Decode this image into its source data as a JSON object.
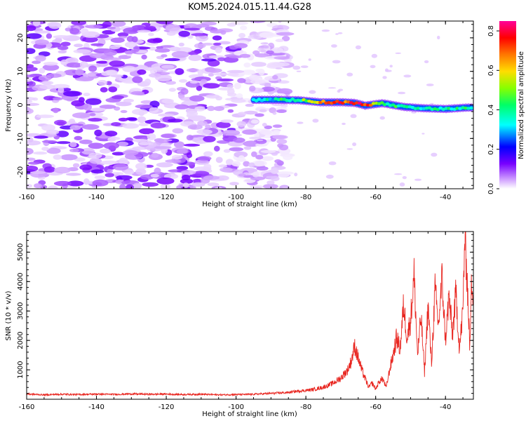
{
  "title": "KOM5.2024.015.11.44.G28",
  "chart_data": [
    {
      "type": "heatmap",
      "xlabel": "Height of straight line (km)",
      "ylabel": "Frequency (Hz)",
      "xlim": [
        -160,
        -32
      ],
      "ylim": [
        -25,
        25
      ],
      "x_ticks": [
        "-160",
        "-140",
        "-120",
        "-100",
        "-80",
        "-60",
        "-40"
      ],
      "y_ticks": [
        "-20",
        "-10",
        "0",
        "10",
        "20"
      ],
      "colorbar": {
        "label": "Normalized spectral amplitude",
        "range": [
          0.0,
          0.85
        ],
        "ticks": [
          "0.0",
          "0.2",
          "0.4",
          "0.6",
          "0.8"
        ],
        "colormap": [
          "#ffffff",
          "#cc99ff",
          "#7700ff",
          "#0000ff",
          "#00ffff",
          "#00ff66",
          "#88ff00",
          "#ffdd00",
          "#ff7700",
          "#ff0000",
          "#ff0099"
        ]
      },
      "background_noise": {
        "x_range": [
          -160,
          -95
        ],
        "amplitude_range": [
          0.02,
          0.15
        ]
      },
      "signal_band": [
        {
          "x": -95,
          "f": 1.5,
          "amp": 0.35
        },
        {
          "x": -88,
          "f": 1.5,
          "amp": 0.4
        },
        {
          "x": -82,
          "f": 1.4,
          "amp": 0.45
        },
        {
          "x": -76,
          "f": 0.8,
          "amp": 0.72
        },
        {
          "x": -70,
          "f": 0.8,
          "amp": 0.8
        },
        {
          "x": -66,
          "f": 0.6,
          "amp": 0.78
        },
        {
          "x": -63,
          "f": -0.2,
          "amp": 0.83
        },
        {
          "x": -58,
          "f": 0.5,
          "amp": 0.4
        },
        {
          "x": -52,
          "f": -0.6,
          "amp": 0.42
        },
        {
          "x": -46,
          "f": -1.0,
          "amp": 0.38
        },
        {
          "x": -40,
          "f": -1.2,
          "amp": 0.42
        },
        {
          "x": -34,
          "f": -0.8,
          "amp": 0.4
        }
      ]
    },
    {
      "type": "line",
      "xlabel": "Height of straight line (km)",
      "ylabel": "SNR (10 * v/v)",
      "xlim": [
        -160,
        -32
      ],
      "ylim": [
        0,
        5700
      ],
      "x_ticks": [
        "-160",
        "-140",
        "-120",
        "-100",
        "-80",
        "-60",
        "-40"
      ],
      "y_ticks": [
        "1000",
        "2000",
        "3000",
        "4000",
        "5000"
      ],
      "color": "#e8251f",
      "series": [
        {
          "x": [
            -160,
            -155,
            -150,
            -145,
            -140,
            -135,
            -130,
            -125,
            -120,
            -115,
            -110,
            -105,
            -100,
            -95,
            -90,
            -85,
            -82,
            -80,
            -78,
            -76,
            -74,
            -72,
            -70,
            -68,
            -67,
            -66,
            -65,
            -64,
            -63,
            -62,
            -61,
            -60,
            -59,
            -58,
            -57,
            -56,
            -55,
            -54,
            -53,
            -52,
            -51,
            -50,
            -49,
            -48,
            -47,
            -46,
            -45,
            -44,
            -43,
            -42,
            -41,
            -40,
            -39,
            -38,
            -37,
            -36,
            -35,
            -34.5,
            -34,
            -33.5,
            -33,
            -32.5,
            -32
          ],
          "values": [
            180,
            150,
            170,
            160,
            175,
            165,
            180,
            170,
            175,
            160,
            170,
            150,
            160,
            170,
            200,
            230,
            280,
            300,
            330,
            380,
            450,
            560,
            720,
            1000,
            1300,
            1800,
            1400,
            1000,
            700,
            400,
            550,
            350,
            600,
            700,
            400,
            1000,
            1500,
            2100,
            1700,
            3200,
            2100,
            2700,
            4200,
            1500,
            2800,
            900,
            3200,
            1200,
            3700,
            2500,
            4100,
            2000,
            3500,
            2200,
            3600,
            1700,
            3000,
            5500,
            4700,
            3200,
            1700,
            4100,
            3600
          ]
        }
      ]
    }
  ]
}
